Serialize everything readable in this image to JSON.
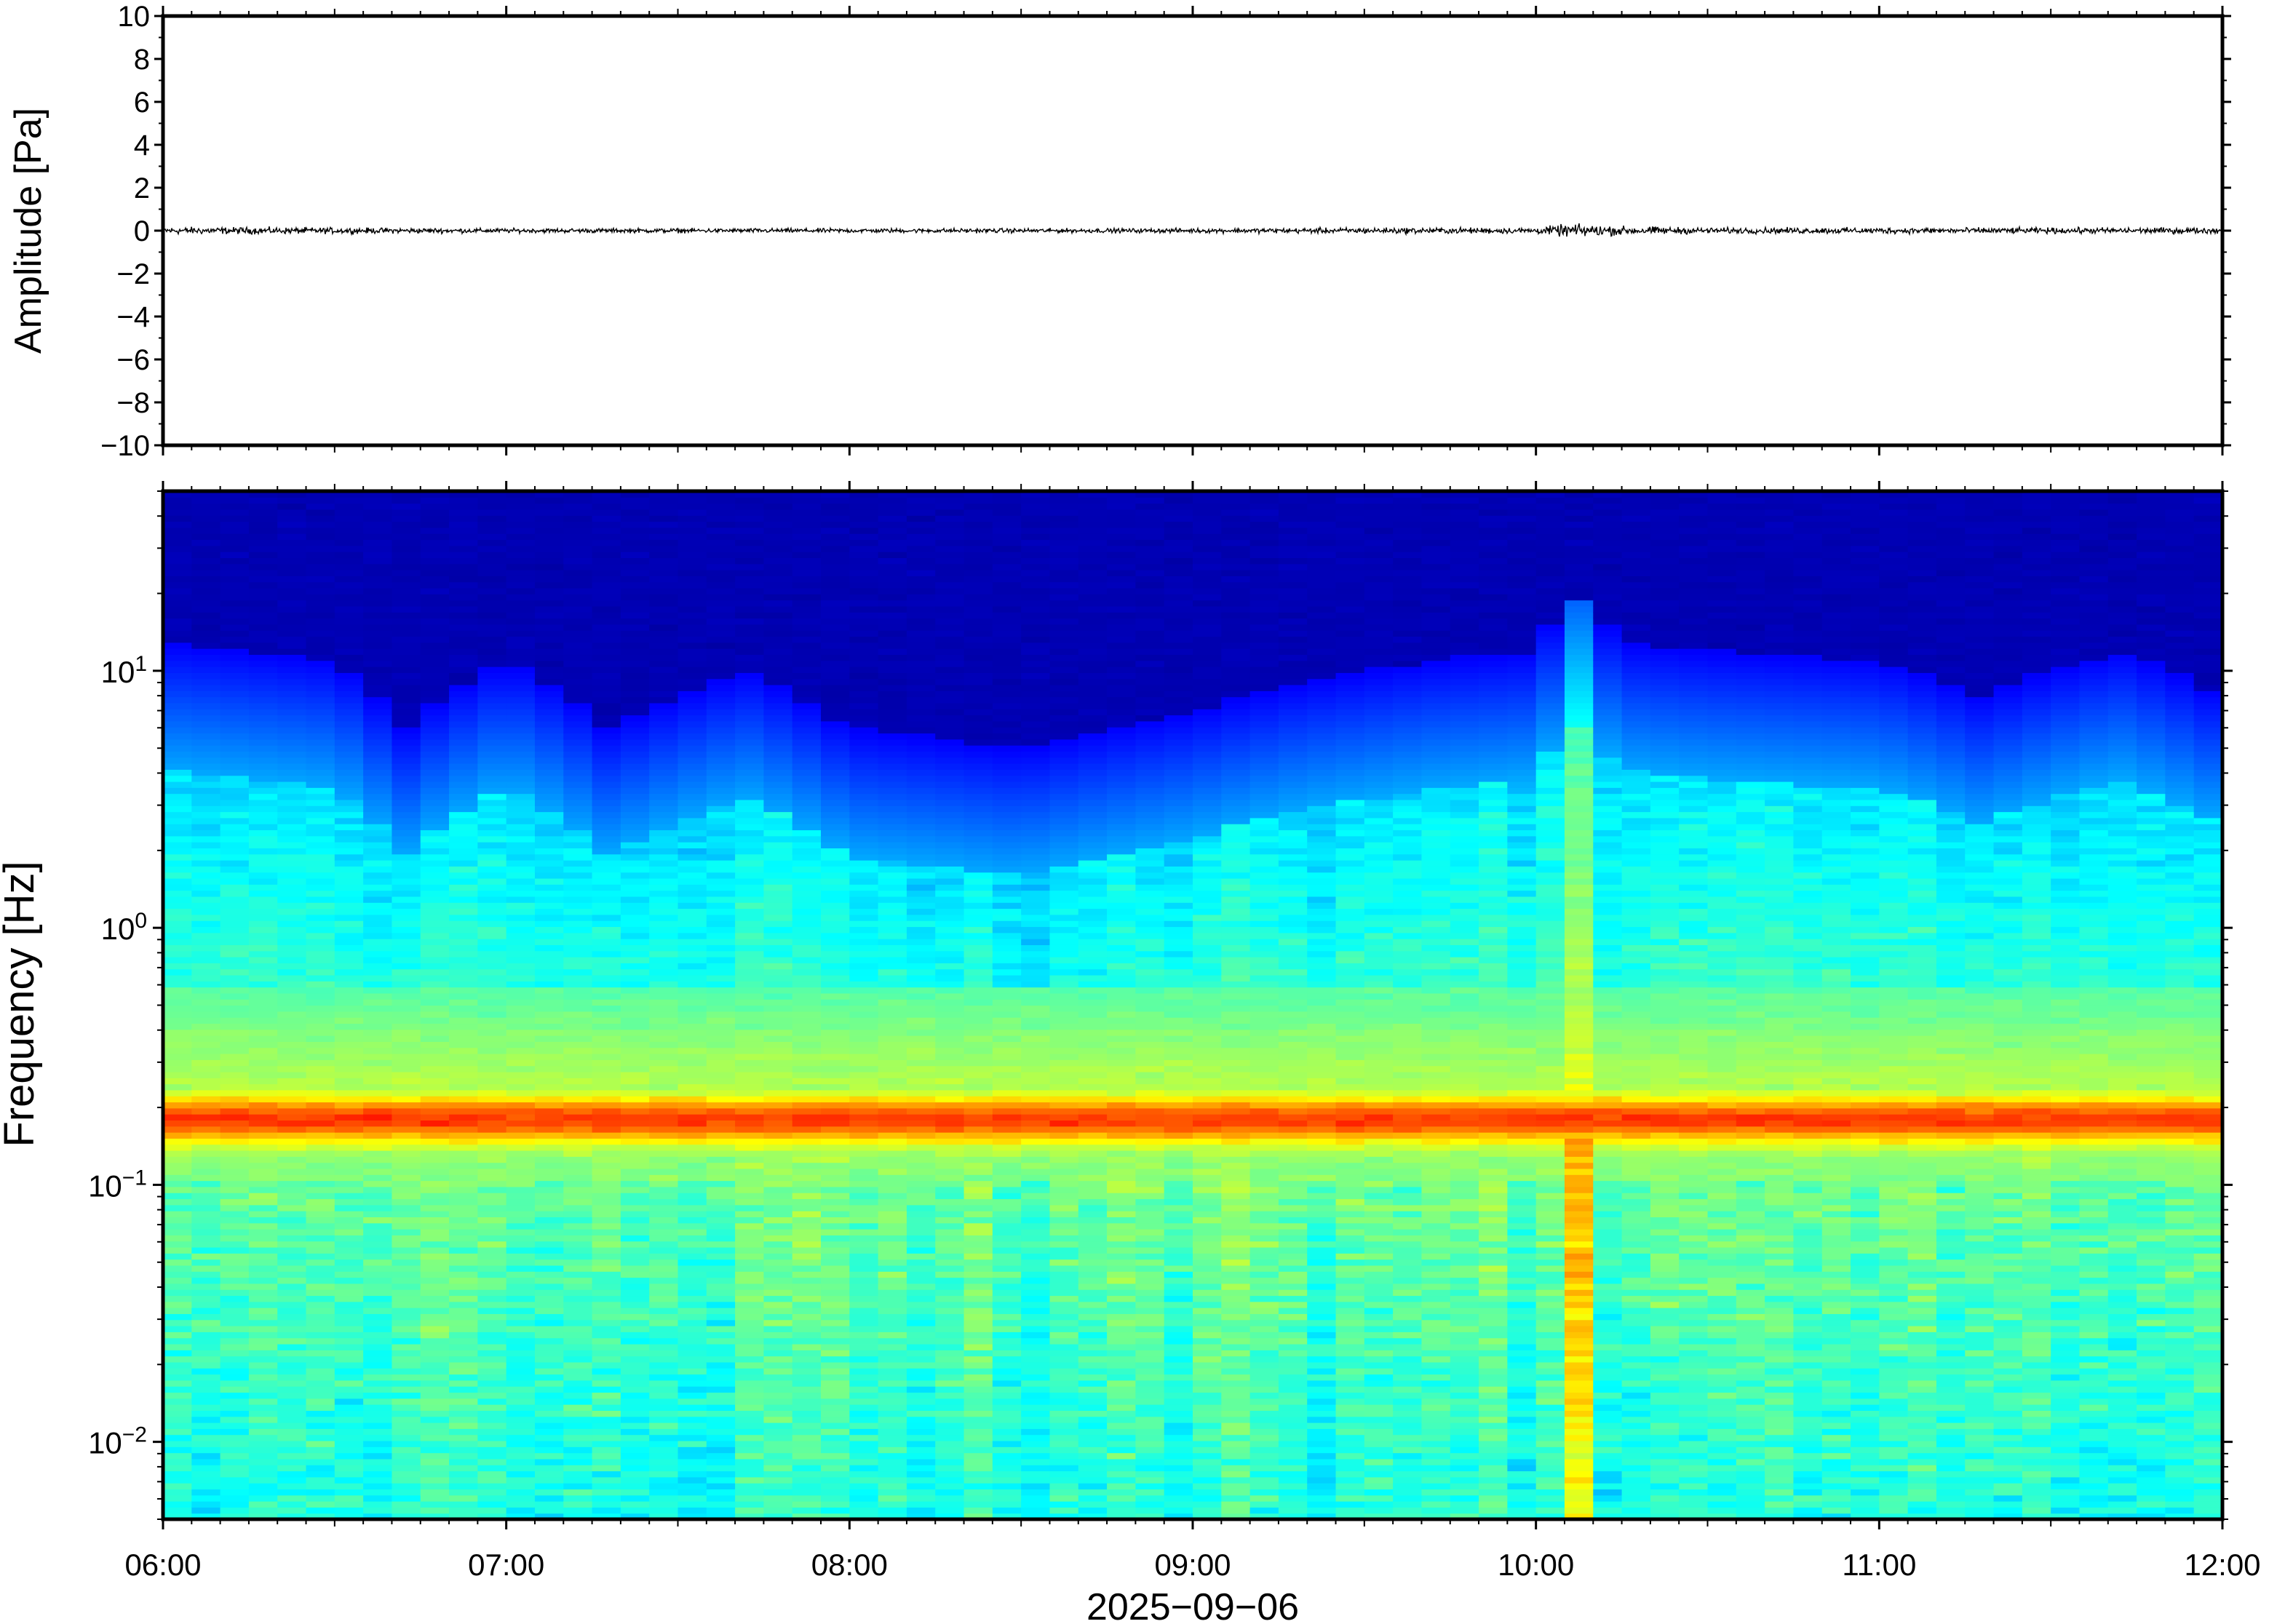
{
  "chart_data": [
    {
      "type": "line",
      "title": "",
      "xlabel": "",
      "ylabel": "Amplitude [Pa]",
      "ylim": [
        -10,
        10
      ],
      "yticks": [
        -10,
        -8,
        -6,
        -4,
        -2,
        0,
        2,
        4,
        6,
        8,
        10
      ],
      "ytick_labels": [
        "−10",
        "−8",
        "−6",
        "−4",
        "−2",
        "0",
        "2",
        "4",
        "6",
        "8",
        "10"
      ],
      "xlim": [
        "06:00",
        "12:00"
      ],
      "series": [
        {
          "time_hours": [
            6.0,
            6.5,
            7.0,
            7.5,
            8.0,
            8.5,
            9.0,
            9.5,
            10.0,
            10.1,
            10.25,
            10.5,
            11.0,
            11.5,
            12.0
          ],
          "peak_abs_amplitude": [
            0.25,
            0.2,
            0.15,
            0.15,
            0.15,
            0.15,
            0.15,
            0.2,
            0.2,
            0.45,
            0.3,
            0.2,
            0.2,
            0.2,
            0.2
          ]
        }
      ]
    },
    {
      "type": "heatmap",
      "title": "",
      "xlabel": "2025−09−06",
      "ylabel": "Frequency [Hz]",
      "yscale": "log",
      "ylim": [
        0.005,
        50
      ],
      "yticks": [
        0.01,
        0.1,
        1,
        10
      ],
      "ytick_labels": [
        {
          "base": "10",
          "exp": "−2"
        },
        {
          "base": "10",
          "exp": "−1"
        },
        {
          "base": "10",
          "exp": "0"
        },
        {
          "base": "10",
          "exp": "1"
        }
      ],
      "xticks": [
        "06:00",
        "07:00",
        "08:00",
        "09:00",
        "10:00",
        "11:00",
        "12:00"
      ],
      "xlim": [
        "06:00",
        "12:00"
      ],
      "colormap": "jet",
      "microbarom_band_hz": [
        0.15,
        0.25
      ],
      "microbarom_peak_hz": 0.18,
      "upper_energy_edge_hz": {
        "time_hours": [
          6.0,
          6.5,
          6.7,
          7.0,
          7.3,
          7.7,
          8.0,
          8.5,
          9.0,
          9.3,
          9.7,
          10.0,
          10.1,
          10.25,
          10.5,
          11.0,
          11.3,
          11.7,
          12.0
        ],
        "freq": [
          13,
          11,
          6,
          11,
          6,
          10,
          6,
          5,
          7,
          9,
          11,
          12,
          20,
          13,
          12,
          11,
          8,
          12,
          8
        ]
      },
      "broadband_event_time_hours": [
        10.05,
        10.2
      ]
    }
  ]
}
